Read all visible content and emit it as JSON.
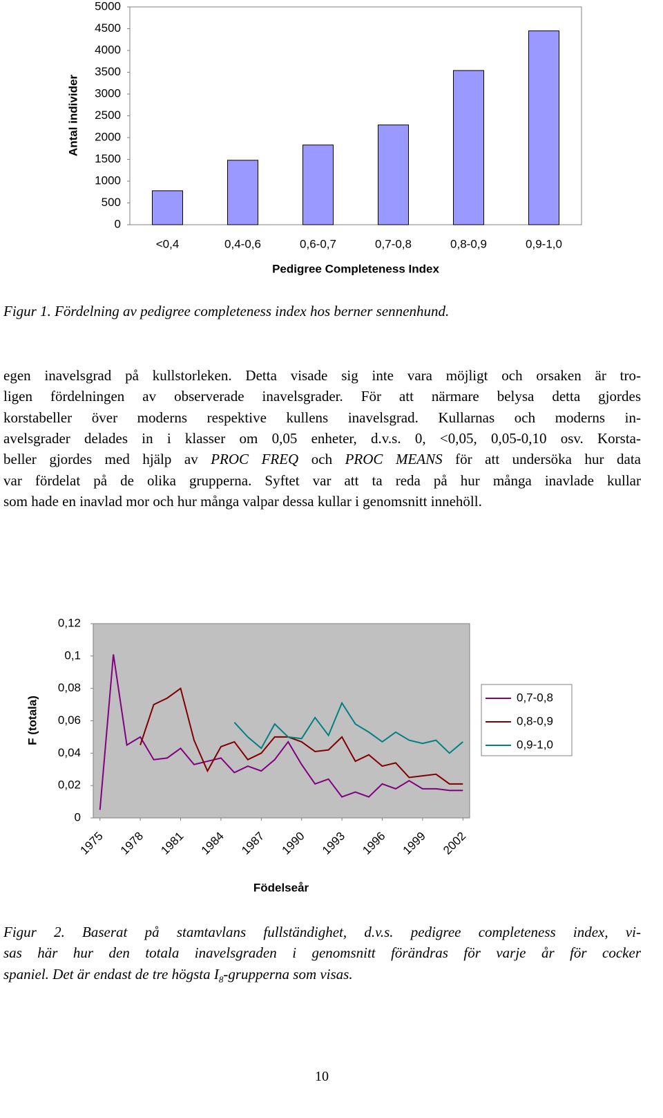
{
  "chart_data": [
    {
      "type": "bar",
      "y_label": "Antal individer",
      "x_label": "Pedigree Completeness Index",
      "categories": [
        "<0,4",
        "0,4-0,6",
        "0,6-0,7",
        "0,7-0,8",
        "0,8-0,9",
        "0,9-1,0"
      ],
      "values": [
        780,
        1480,
        1830,
        2290,
        3540,
        4450
      ],
      "color": "#9999ff",
      "ylim": [
        0,
        5000
      ],
      "yticks": [
        0,
        500,
        1000,
        1500,
        2000,
        2500,
        3000,
        3500,
        4000,
        4500,
        5000
      ],
      "grid": false
    },
    {
      "type": "line",
      "y_label": "F (totala)",
      "x_label": "Födelseår",
      "x": [
        1975,
        1976,
        1977,
        1978,
        1979,
        1980,
        1981,
        1982,
        1983,
        1984,
        1985,
        1986,
        1987,
        1988,
        1989,
        1990,
        1991,
        1992,
        1993,
        1994,
        1995,
        1996,
        1997,
        1998,
        1999,
        2000,
        2001,
        2002
      ],
      "xlim": [
        1974.5,
        2002.5
      ],
      "xticks": [
        1975,
        1978,
        1981,
        1984,
        1987,
        1990,
        1993,
        1996,
        1999,
        2002
      ],
      "ylim": [
        0,
        0.12
      ],
      "yticks": [
        0,
        {
          "value": 0.02,
          "label": "0,02"
        },
        {
          "value": 0.04,
          "label": "0,04"
        },
        {
          "value": 0.06,
          "label": "0,06"
        },
        {
          "value": 0.08,
          "label": "0,08"
        },
        {
          "value": 0.1,
          "label": "0,1"
        },
        {
          "value": 0.12,
          "label": "0,12"
        }
      ],
      "grid": false,
      "legend": "right",
      "series": [
        {
          "name": "0,7-0,8",
          "color": "#800080",
          "values": [
            0.005,
            0.101,
            0.045,
            0.05,
            0.036,
            0.037,
            0.043,
            0.033,
            0.035,
            0.037,
            0.028,
            0.032,
            0.029,
            0.036,
            0.047,
            0.033,
            0.021,
            0.024,
            0.013,
            0.016,
            0.013,
            0.021,
            0.018,
            0.023,
            0.018,
            0.018,
            0.017,
            0.017
          ]
        },
        {
          "name": "0,8-0,9",
          "color": "#800000",
          "values": [
            null,
            null,
            null,
            0.045,
            0.07,
            0.074,
            0.08,
            0.048,
            0.029,
            0.044,
            0.047,
            0.036,
            0.04,
            0.05,
            0.05,
            0.047,
            0.041,
            0.042,
            0.05,
            0.035,
            0.039,
            0.032,
            0.034,
            0.025,
            0.026,
            0.027,
            0.021,
            0.021
          ]
        },
        {
          "name": "0,9-1,0",
          "color": "#008080",
          "values": [
            null,
            null,
            null,
            null,
            null,
            null,
            null,
            null,
            null,
            null,
            0.059,
            0.05,
            0.043,
            0.058,
            0.05,
            0.049,
            0.062,
            0.051,
            0.071,
            0.058,
            0.053,
            0.047,
            0.053,
            0.048,
            0.046,
            0.048,
            0.04,
            0.047
          ]
        }
      ]
    }
  ],
  "document": {
    "figure1_caption": "Figur 1. Fördelning av pedigree completeness index hos berner sennenhund.",
    "paragraph": [
      [
        "egen inavelsgrad på kullstorleken. Detta visade sig inte vara möjligt och orsaken är tro-"
      ],
      [
        "ligen fördelningen av observerade inavelsgrader. För att närmare belysa detta gjordes"
      ],
      [
        "korstabeller över moderns respektive kullens inavelsgrad. Kullarnas och moderns in-"
      ],
      [
        "avelsgrader delades in i klasser om 0,05 enheter, d.v.s. 0, <0,05, 0,05-0,10 osv. Korsta-"
      ],
      [
        "beller gjordes med hjälp av ",
        {
          "text": "PROC FREQ",
          "italic": true
        },
        " och ",
        {
          "text": "PROC MEANS",
          "italic": true
        },
        " för att undersöka hur data"
      ],
      [
        "var fördelat på de olika grupperna. Syftet var att ta reda på hur många inavlade kullar"
      ],
      [
        "som hade en inavlad mor och hur många valpar dessa kullar i genomsnitt innehöll."
      ]
    ],
    "figure2_caption": [
      [
        "Figur 2. Baserat på stamtavlans fullständighet, d.v.s. pedigree completeness index, vi-"
      ],
      [
        "sas här hur den totala inavelsgraden i genomsnitt förändras för varje år för cocker"
      ],
      [
        "spaniel. Det är endast de tre högsta I",
        {
          "text": "8",
          "sub": true
        },
        "-grupperna som visas."
      ]
    ],
    "page_number": "10"
  }
}
